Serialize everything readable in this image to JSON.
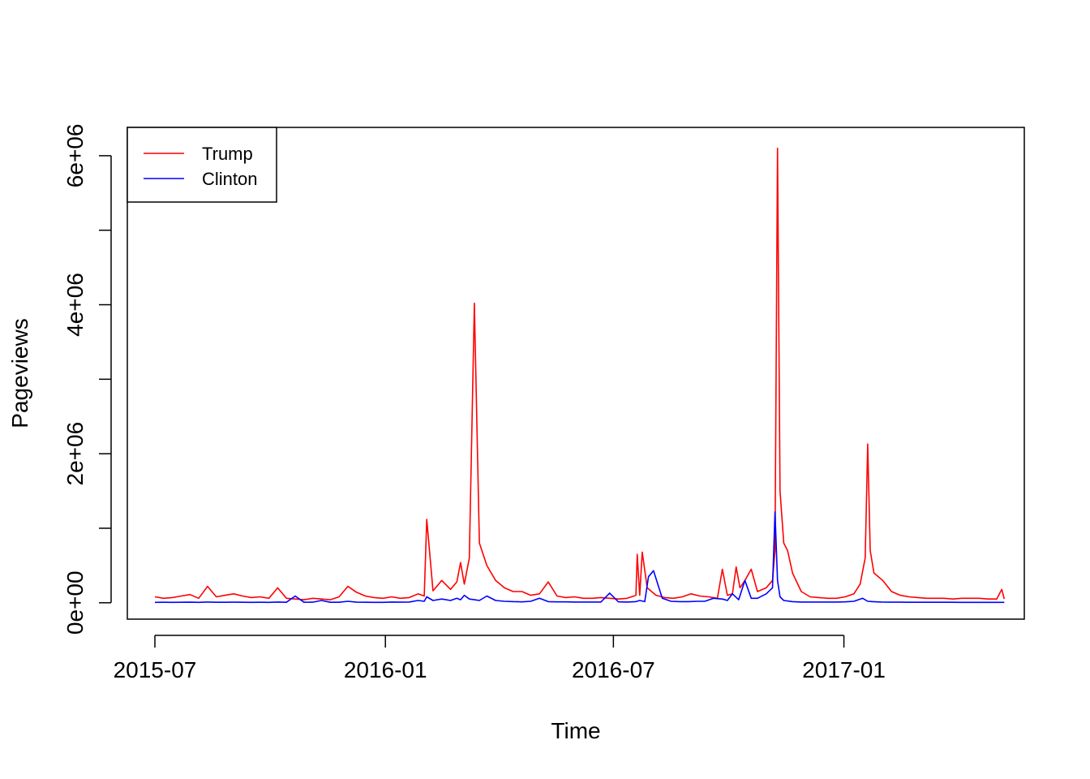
{
  "chart_data": {
    "type": "line",
    "xlabel": "Time",
    "ylabel": "Pageviews",
    "x_ticks": [
      "2015-07",
      "2016-01",
      "2016-07",
      "2017-01"
    ],
    "y_ticks": [
      {
        "value": 0,
        "label": "0e+00"
      },
      {
        "value": 1000000,
        "label": ""
      },
      {
        "value": 2000000,
        "label": "2e+06"
      },
      {
        "value": 3000000,
        "label": ""
      },
      {
        "value": 4000000,
        "label": "4e+06"
      },
      {
        "value": 5000000,
        "label": ""
      },
      {
        "value": 6000000,
        "label": "6e+06"
      }
    ],
    "xlim": [
      "2015-06-09",
      "2017-05-25"
    ],
    "ylim": [
      -220000,
      6380000
    ],
    "legend": {
      "position": "top-left"
    },
    "grid": false,
    "series": [
      {
        "name": "Trump",
        "color": "#ff0000",
        "x": [
          "2015-07-01",
          "2015-07-08",
          "2015-07-15",
          "2015-07-22",
          "2015-07-29",
          "2015-08-05",
          "2015-08-12",
          "2015-08-19",
          "2015-08-26",
          "2015-09-02",
          "2015-09-09",
          "2015-09-16",
          "2015-09-23",
          "2015-09-30",
          "2015-10-07",
          "2015-10-14",
          "2015-10-21",
          "2015-10-28",
          "2015-11-04",
          "2015-11-11",
          "2015-11-18",
          "2015-11-25",
          "2015-12-02",
          "2015-12-09",
          "2015-12-16",
          "2015-12-23",
          "2015-12-30",
          "2016-01-06",
          "2016-01-13",
          "2016-01-20",
          "2016-01-27",
          "2016-02-01",
          "2016-02-03",
          "2016-02-08",
          "2016-02-15",
          "2016-02-22",
          "2016-02-27",
          "2016-03-01",
          "2016-03-04",
          "2016-03-08",
          "2016-03-12",
          "2016-03-16",
          "2016-03-22",
          "2016-03-29",
          "2016-04-05",
          "2016-04-12",
          "2016-04-19",
          "2016-04-26",
          "2016-05-03",
          "2016-05-10",
          "2016-05-17",
          "2016-05-24",
          "2016-05-31",
          "2016-06-07",
          "2016-06-14",
          "2016-06-21",
          "2016-06-28",
          "2016-07-05",
          "2016-07-12",
          "2016-07-19",
          "2016-07-20",
          "2016-07-22",
          "2016-07-24",
          "2016-07-28",
          "2016-08-04",
          "2016-08-11",
          "2016-08-18",
          "2016-08-25",
          "2016-09-01",
          "2016-09-08",
          "2016-09-15",
          "2016-09-22",
          "2016-09-26",
          "2016-09-30",
          "2016-10-04",
          "2016-10-07",
          "2016-10-10",
          "2016-10-14",
          "2016-10-19",
          "2016-10-24",
          "2016-10-31",
          "2016-11-05",
          "2016-11-07",
          "2016-11-09",
          "2016-11-11",
          "2016-11-14",
          "2016-11-17",
          "2016-11-21",
          "2016-11-28",
          "2016-12-05",
          "2016-12-12",
          "2016-12-19",
          "2016-12-26",
          "2017-01-02",
          "2017-01-09",
          "2017-01-14",
          "2017-01-18",
          "2017-01-20",
          "2017-01-22",
          "2017-01-25",
          "2017-02-01",
          "2017-02-08",
          "2017-02-15",
          "2017-02-22",
          "2017-03-01",
          "2017-03-08",
          "2017-03-15",
          "2017-03-22",
          "2017-03-29",
          "2017-04-05",
          "2017-04-12",
          "2017-04-19",
          "2017-04-26",
          "2017-05-03",
          "2017-05-07",
          "2017-05-09"
        ],
        "values": [
          80000,
          60000,
          70000,
          90000,
          110000,
          60000,
          220000,
          80000,
          100000,
          120000,
          90000,
          70000,
          80000,
          60000,
          200000,
          60000,
          50000,
          40000,
          60000,
          50000,
          40000,
          80000,
          220000,
          140000,
          90000,
          70000,
          60000,
          80000,
          60000,
          70000,
          120000,
          90000,
          1120000,
          160000,
          300000,
          180000,
          280000,
          540000,
          250000,
          600000,
          4020000,
          800000,
          500000,
          300000,
          200000,
          150000,
          150000,
          100000,
          120000,
          280000,
          90000,
          70000,
          80000,
          60000,
          60000,
          70000,
          60000,
          50000,
          60000,
          100000,
          650000,
          100000,
          680000,
          200000,
          100000,
          70000,
          60000,
          80000,
          120000,
          90000,
          80000,
          60000,
          450000,
          100000,
          120000,
          480000,
          200000,
          300000,
          450000,
          150000,
          200000,
          300000,
          700000,
          6100000,
          1500000,
          800000,
          700000,
          400000,
          150000,
          80000,
          70000,
          60000,
          60000,
          80000,
          120000,
          250000,
          600000,
          2130000,
          700000,
          400000,
          300000,
          150000,
          100000,
          80000,
          70000,
          60000,
          60000,
          60000,
          50000,
          60000,
          60000,
          60000,
          50000,
          50000,
          180000,
          50000
        ]
      },
      {
        "name": "Clinton",
        "color": "#0000ff",
        "x": [
          "2015-07-01",
          "2015-07-08",
          "2015-07-15",
          "2015-07-22",
          "2015-07-29",
          "2015-08-05",
          "2015-08-12",
          "2015-08-19",
          "2015-08-26",
          "2015-09-02",
          "2015-09-09",
          "2015-09-16",
          "2015-09-23",
          "2015-09-30",
          "2015-10-07",
          "2015-10-14",
          "2015-10-21",
          "2015-10-28",
          "2015-11-04",
          "2015-11-11",
          "2015-11-18",
          "2015-11-25",
          "2015-12-02",
          "2015-12-09",
          "2015-12-16",
          "2015-12-23",
          "2015-12-30",
          "2016-01-06",
          "2016-01-13",
          "2016-01-20",
          "2016-01-27",
          "2016-02-01",
          "2016-02-03",
          "2016-02-08",
          "2016-02-15",
          "2016-02-22",
          "2016-02-27",
          "2016-03-01",
          "2016-03-04",
          "2016-03-08",
          "2016-03-12",
          "2016-03-16",
          "2016-03-22",
          "2016-03-29",
          "2016-04-05",
          "2016-04-12",
          "2016-04-19",
          "2016-04-26",
          "2016-05-03",
          "2016-05-10",
          "2016-05-17",
          "2016-05-24",
          "2016-05-31",
          "2016-06-07",
          "2016-06-14",
          "2016-06-21",
          "2016-06-28",
          "2016-07-05",
          "2016-07-12",
          "2016-07-19",
          "2016-07-22",
          "2016-07-26",
          "2016-07-29",
          "2016-08-02",
          "2016-08-09",
          "2016-08-16",
          "2016-08-23",
          "2016-08-30",
          "2016-09-06",
          "2016-09-12",
          "2016-09-19",
          "2016-09-26",
          "2016-09-30",
          "2016-10-04",
          "2016-10-09",
          "2016-10-14",
          "2016-10-19",
          "2016-10-24",
          "2016-10-31",
          "2016-11-05",
          "2016-11-07",
          "2016-11-09",
          "2016-11-11",
          "2016-11-14",
          "2016-11-21",
          "2016-11-28",
          "2016-12-05",
          "2016-12-12",
          "2016-12-19",
          "2016-12-26",
          "2017-01-02",
          "2017-01-09",
          "2017-01-16",
          "2017-01-20",
          "2017-01-24",
          "2017-01-31",
          "2017-02-07",
          "2017-02-14",
          "2017-02-21",
          "2017-02-28",
          "2017-03-07",
          "2017-03-14",
          "2017-03-21",
          "2017-03-28",
          "2017-04-04",
          "2017-04-11",
          "2017-04-18",
          "2017-04-25",
          "2017-05-02",
          "2017-05-09"
        ],
        "values": [
          5000,
          6000,
          5000,
          6000,
          8000,
          5000,
          10000,
          6000,
          7000,
          8000,
          6000,
          5000,
          6000,
          5000,
          10000,
          6000,
          90000,
          7000,
          8000,
          30000,
          6000,
          7000,
          20000,
          8000,
          6000,
          5000,
          5000,
          10000,
          8000,
          10000,
          30000,
          20000,
          80000,
          30000,
          50000,
          30000,
          60000,
          40000,
          100000,
          50000,
          40000,
          30000,
          90000,
          30000,
          20000,
          15000,
          12000,
          20000,
          60000,
          15000,
          12000,
          12000,
          10000,
          10000,
          10000,
          10000,
          130000,
          12000,
          10000,
          15000,
          30000,
          15000,
          350000,
          430000,
          60000,
          20000,
          15000,
          15000,
          20000,
          20000,
          60000,
          50000,
          30000,
          120000,
          40000,
          300000,
          60000,
          60000,
          120000,
          200000,
          1220000,
          300000,
          80000,
          30000,
          15000,
          10000,
          10000,
          10000,
          10000,
          10000,
          12000,
          20000,
          60000,
          20000,
          15000,
          10000,
          8000,
          8000,
          7000,
          7000,
          7000,
          6000,
          6000,
          6000,
          5000,
          5000,
          5000,
          5000,
          5000,
          5000
        ]
      }
    ]
  }
}
